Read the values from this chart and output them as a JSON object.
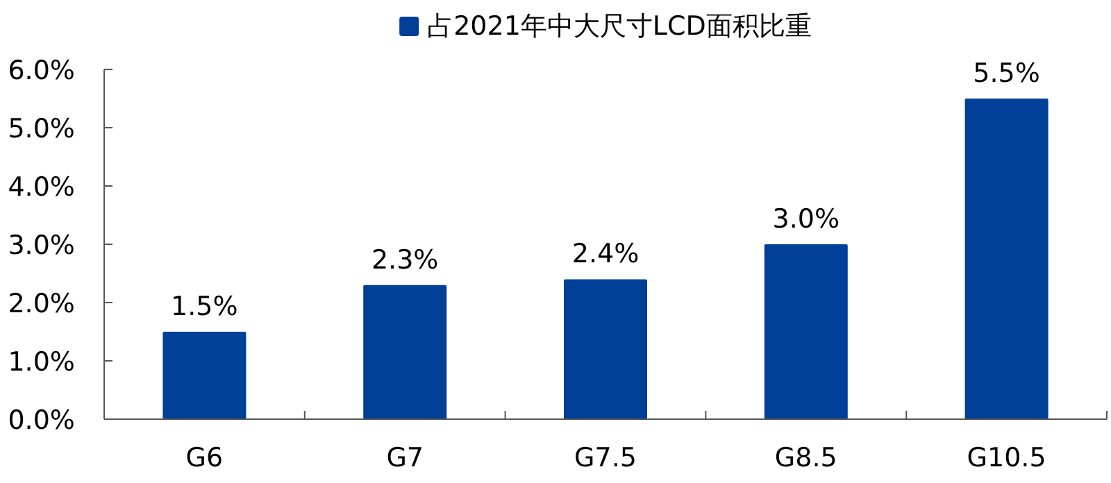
{
  "chart_data": {
    "type": "bar",
    "categories": [
      "G6",
      "G7",
      "G7.5",
      "G8.5",
      "G10.5"
    ],
    "series": [
      {
        "name": "占2021年中大尺寸LCD面积比重",
        "color": "#003f98",
        "values": [
          1.5,
          2.3,
          2.4,
          3.0,
          5.5
        ],
        "value_labels": [
          "1.5%",
          "2.3%",
          "2.4%",
          "3.0%",
          "5.5%"
        ]
      }
    ],
    "ylim": [
      0,
      6
    ],
    "yticks": [
      {
        "value": 0,
        "label": "0.0%"
      },
      {
        "value": 1,
        "label": "1.0%"
      },
      {
        "value": 2,
        "label": "2.0%"
      },
      {
        "value": 3,
        "label": "3.0%"
      },
      {
        "value": 4,
        "label": "4.0%"
      },
      {
        "value": 5,
        "label": "5.0%"
      },
      {
        "value": 6,
        "label": "6.0%"
      }
    ],
    "legend": "top",
    "grid": false
  }
}
